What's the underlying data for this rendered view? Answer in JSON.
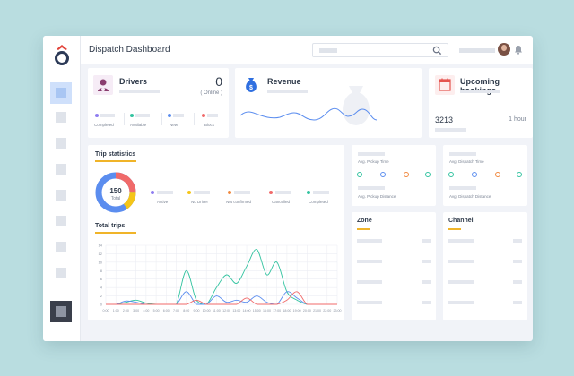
{
  "header": {
    "title": "Dispatch Dashboard"
  },
  "drivers": {
    "title": "Drivers",
    "count": "0",
    "online": "( Online )",
    "statuses": [
      {
        "label": "Completed",
        "color": "#8e7cf0"
      },
      {
        "label": "Available",
        "color": "#33c3a0"
      },
      {
        "label": "New",
        "color": "#5b8def"
      },
      {
        "label": "Block",
        "color": "#f06a6a"
      }
    ]
  },
  "revenue": {
    "title": "Revenue"
  },
  "bookings": {
    "title": "Upcoming bookings",
    "count": "3213",
    "period": "1 hour"
  },
  "trip_stats": {
    "title": "Trip statistics",
    "total_value": "150",
    "total_label": "Total",
    "legend": [
      {
        "label": "Active",
        "color": "#8e7cf0"
      },
      {
        "label": "No Driver",
        "color": "#f5c518"
      },
      {
        "label": "Not confirmed",
        "color": "#f0883e"
      },
      {
        "label": "Cancelled",
        "color": "#f06a6a"
      },
      {
        "label": "Completed",
        "color": "#33c3a0"
      }
    ]
  },
  "pickup": {
    "time_label": "Avg. Pickup Time",
    "distance_label": "Avg. Pickup Distance"
  },
  "dispatch": {
    "time_label": "Avg. Dispatch Time",
    "distance_label": "Avg. Dispatch Distance"
  },
  "zone": {
    "title": "Zone"
  },
  "channel": {
    "title": "Channel"
  },
  "total_trips": {
    "title": "Total trips"
  },
  "chart_data": {
    "type": "line",
    "x": [
      "0:00",
      "1:00",
      "2:00",
      "3:00",
      "4:00",
      "5:00",
      "6:00",
      "7:00",
      "8:00",
      "9:00",
      "10:00",
      "11:00",
      "12:00",
      "13:00",
      "14:00",
      "15:00",
      "16:00",
      "17:00",
      "18:00",
      "19:00",
      "20:00",
      "21:00",
      "22:00",
      "23:00"
    ],
    "ylim": [
      0,
      14
    ],
    "yticks": [
      0,
      2,
      4,
      6,
      8,
      10,
      12,
      14
    ],
    "series": [
      {
        "color": "#33c3a0",
        "values": [
          0,
          0,
          0.5,
          1,
          0.3,
          0,
          0,
          0,
          8,
          1,
          0,
          4,
          7,
          5,
          9,
          13,
          7,
          10,
          3,
          1,
          0,
          0,
          0,
          0
        ]
      },
      {
        "color": "#5b8def",
        "values": [
          0,
          0,
          0.8,
          0.5,
          0,
          0,
          0,
          0,
          3,
          0,
          0,
          2,
          0.5,
          1,
          0.5,
          2,
          0.5,
          0,
          3,
          1.5,
          0,
          0,
          0,
          0
        ]
      },
      {
        "color": "#f06a6a",
        "values": [
          0,
          0,
          0,
          0,
          0,
          0,
          0,
          0,
          0,
          1,
          0,
          0,
          0,
          0,
          1.5,
          0,
          0,
          0,
          1,
          3,
          0,
          0,
          0,
          0
        ]
      }
    ],
    "grid": true
  }
}
